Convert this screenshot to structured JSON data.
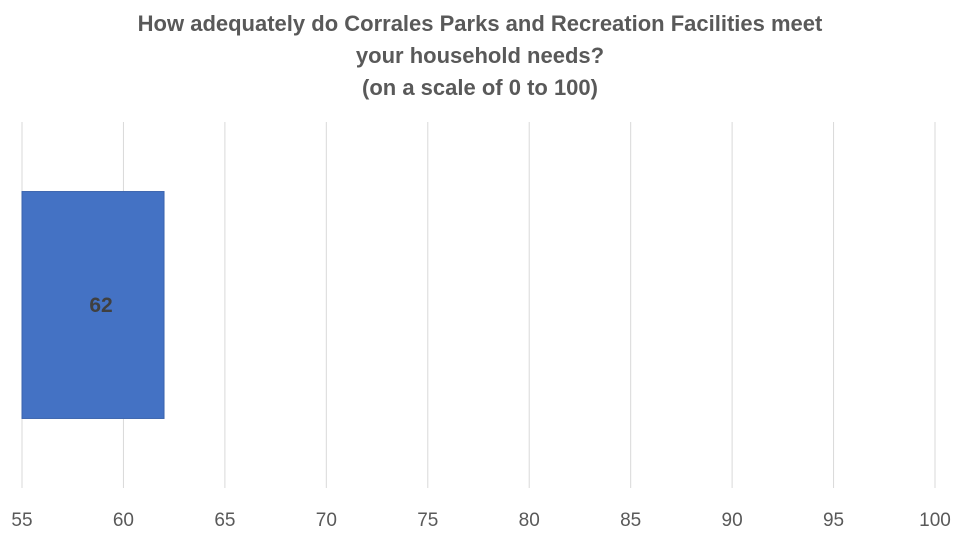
{
  "chart_data": {
    "type": "bar",
    "orientation": "horizontal",
    "title_lines": [
      "How adequately do Corrales Parks and Recreation Facilities meet",
      "your household needs?",
      "(on a scale of 0 to 100)"
    ],
    "categories": [
      ""
    ],
    "values": [
      62
    ],
    "data_labels": [
      "62"
    ],
    "xlim": [
      55,
      100
    ],
    "xticks": [
      55,
      60,
      65,
      70,
      75,
      80,
      85,
      90,
      95,
      100
    ],
    "xtick_labels": [
      "55",
      "60",
      "65",
      "70",
      "75",
      "80",
      "85",
      "90",
      "95",
      "100"
    ],
    "xlabel": "",
    "ylabel": "",
    "grid": "vertical",
    "legend": "none",
    "colors": {
      "bar": "#4472C4",
      "bar_edge": "#3a63ad",
      "grid": "#d9d9d9",
      "text": "#595959",
      "data_label": "#404040"
    }
  }
}
